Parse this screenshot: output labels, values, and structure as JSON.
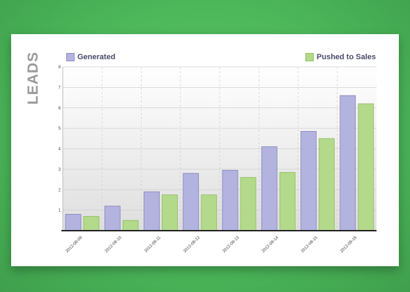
{
  "chart_data": {
    "type": "bar",
    "ylabel": "LEADS",
    "categories": [
      "2012-08-09",
      "2012-08-10",
      "2012-08-11",
      "2012-08-12",
      "2012-08-13",
      "2012-08-14",
      "2012-08-15",
      "2012-08-16"
    ],
    "series": [
      {
        "name": "Generated",
        "color": "#b3b3e0",
        "stroke": "#7f7fba",
        "values": [
          0.8,
          1.2,
          1.9,
          2.8,
          2.95,
          4.1,
          4.85,
          6.6
        ]
      },
      {
        "name": "Pushed to Sales",
        "color": "#b3d98a",
        "stroke": "#8cbc5e",
        "values": [
          0.7,
          0.5,
          1.75,
          1.75,
          2.6,
          2.85,
          4.5,
          6.2
        ]
      }
    ],
    "yticks": [
      "1",
      "2",
      "3",
      "4",
      "5",
      "6",
      "7",
      "8"
    ],
    "ylim": [
      0,
      8
    ],
    "grid": true,
    "legend": "top"
  }
}
